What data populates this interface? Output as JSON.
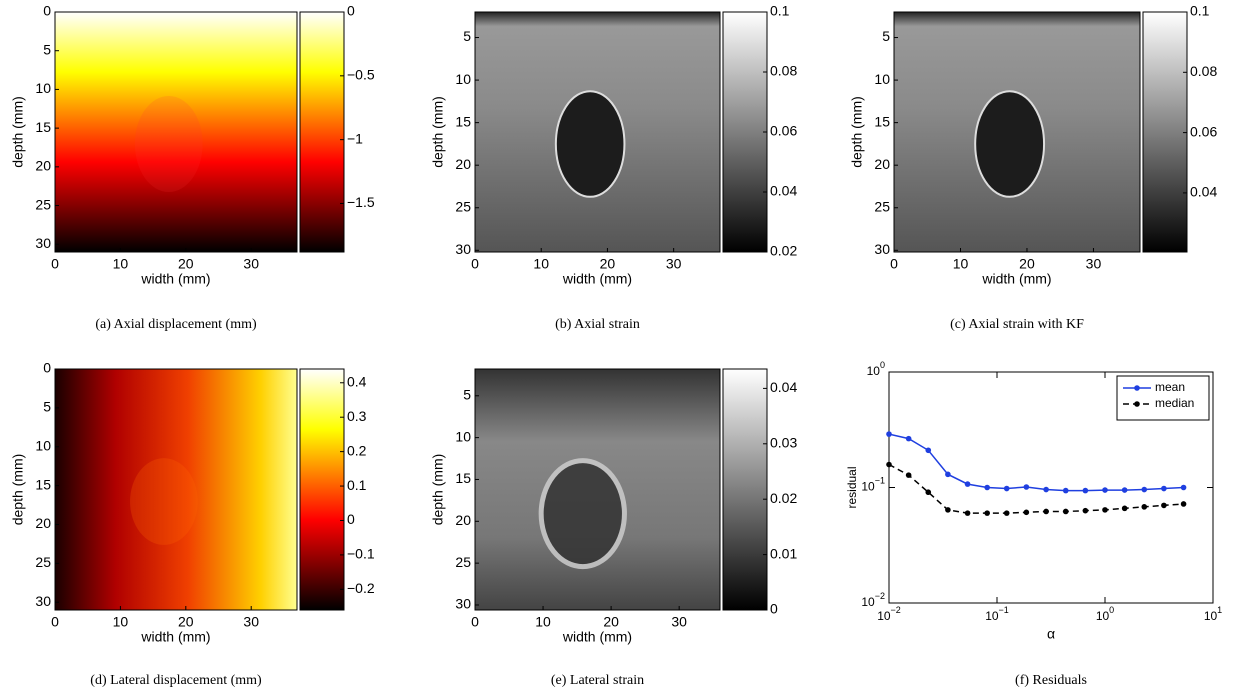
{
  "chart_data": [
    {
      "type": "image",
      "xlabel": "width (mm)",
      "ylabel": "depth (mm)",
      "xlim": [
        0,
        37
      ],
      "ylim": [
        0,
        31
      ],
      "xticks": [
        0,
        10,
        20,
        30
      ],
      "yticks": [
        0,
        5,
        10,
        15,
        20,
        25,
        30
      ],
      "colormap": "hot",
      "clim": [
        -1.88,
        0
      ],
      "cticks": [
        {
          "value": -1.5,
          "label": "−1.5"
        },
        {
          "value": -1,
          "label": "−1"
        },
        {
          "value": -0.5,
          "label": "−0.5"
        },
        0
      ],
      "caption": "(a) Axial displacement (mm)"
    },
    {
      "type": "image",
      "xlabel": "width (mm)",
      "ylabel": "depth (mm)",
      "xlim": [
        0,
        37
      ],
      "ylim": [
        2,
        30.2
      ],
      "xticks": [
        0,
        10,
        20,
        30
      ],
      "yticks": [
        5,
        10,
        15,
        20,
        25,
        30
      ],
      "colormap": "gray",
      "clim": [
        0.02,
        0.1
      ],
      "cticks": [
        0.02,
        0.04,
        0.06,
        0.08,
        0.1
      ],
      "caption": "(b) Axial strain"
    },
    {
      "type": "image",
      "xlabel": "width (mm)",
      "ylabel": "depth (mm)",
      "xlim": [
        0,
        37
      ],
      "ylim": [
        2,
        30.2
      ],
      "xticks": [
        0,
        10,
        20,
        30
      ],
      "yticks": [
        5,
        10,
        15,
        20,
        25,
        30
      ],
      "colormap": "gray",
      "clim": [
        0.0204,
        0.1
      ],
      "cticks": [
        0.04,
        0.06,
        0.08,
        0.1
      ],
      "caption": "(c) Axial strain with KF"
    },
    {
      "type": "image",
      "xlabel": "width (mm)",
      "ylabel": "depth (mm)",
      "xlim": [
        0,
        37
      ],
      "ylim": [
        0,
        31
      ],
      "xticks": [
        0,
        10,
        20,
        30
      ],
      "yticks": [
        0,
        5,
        10,
        15,
        20,
        25,
        30
      ],
      "colormap": "hot",
      "clim": [
        -0.26,
        0.44
      ],
      "cticks": [
        {
          "value": -0.2,
          "label": "−0.2"
        },
        {
          "value": -0.1,
          "label": "−0.1"
        },
        0,
        0.1,
        0.2,
        0.3,
        0.4
      ],
      "caption": "(d) Lateral displacement (mm)"
    },
    {
      "type": "image",
      "xlabel": "width (mm)",
      "ylabel": "depth (mm)",
      "xlim": [
        0,
        36
      ],
      "ylim": [
        1.8,
        30.6
      ],
      "xticks": [
        0,
        10,
        20,
        30
      ],
      "yticks": [
        5,
        10,
        15,
        20,
        25,
        30
      ],
      "colormap": "gray",
      "clim": [
        0,
        0.0435
      ],
      "cticks": [
        0,
        0.01,
        0.02,
        0.03,
        0.04
      ],
      "caption": "(e) Lateral strain"
    },
    {
      "type": "line",
      "xlabel": "α",
      "ylabel": "residual",
      "xscale": "log",
      "yscale": "log",
      "xlim": [
        0.01,
        10
      ],
      "ylim": [
        0.01,
        1
      ],
      "xticks": [
        {
          "value": 0.01,
          "label": "10",
          "exponent": "−2"
        },
        {
          "value": 0.1,
          "label": "10",
          "exponent": "−1"
        },
        {
          "value": 1,
          "label": "10",
          "exponent": "0"
        },
        {
          "value": 10,
          "label": "10",
          "exponent": "1"
        }
      ],
      "yticks": [
        {
          "value": 0.01,
          "label": "10",
          "exponent": "−2"
        },
        {
          "value": 0.1,
          "label": "10",
          "exponent": "−1"
        },
        {
          "value": 1,
          "label": "10",
          "exponent": "0"
        }
      ],
      "x": [
        0.01,
        0.0152,
        0.0231,
        0.0351,
        0.0534,
        0.0811,
        0.123,
        0.187,
        0.285,
        0.433,
        0.658,
        1.0,
        1.52,
        2.31,
        3.51,
        5.34
      ],
      "series": [
        {
          "name": "mean",
          "color": "#1f3fe0",
          "linestyle": "solid",
          "values": [
            0.29,
            0.265,
            0.21,
            0.13,
            0.107,
            0.1,
            0.098,
            0.101,
            0.096,
            0.094,
            0.094,
            0.095,
            0.095,
            0.096,
            0.098,
            0.1
          ]
        },
        {
          "name": "median",
          "color": "#000000",
          "linestyle": "dashed",
          "values": [
            0.158,
            0.128,
            0.091,
            0.064,
            0.06,
            0.06,
            0.06,
            0.061,
            0.062,
            0.062,
            0.063,
            0.064,
            0.066,
            0.068,
            0.07,
            0.072
          ]
        }
      ],
      "legend": "upper right",
      "caption": "(f) Residuals"
    }
  ]
}
